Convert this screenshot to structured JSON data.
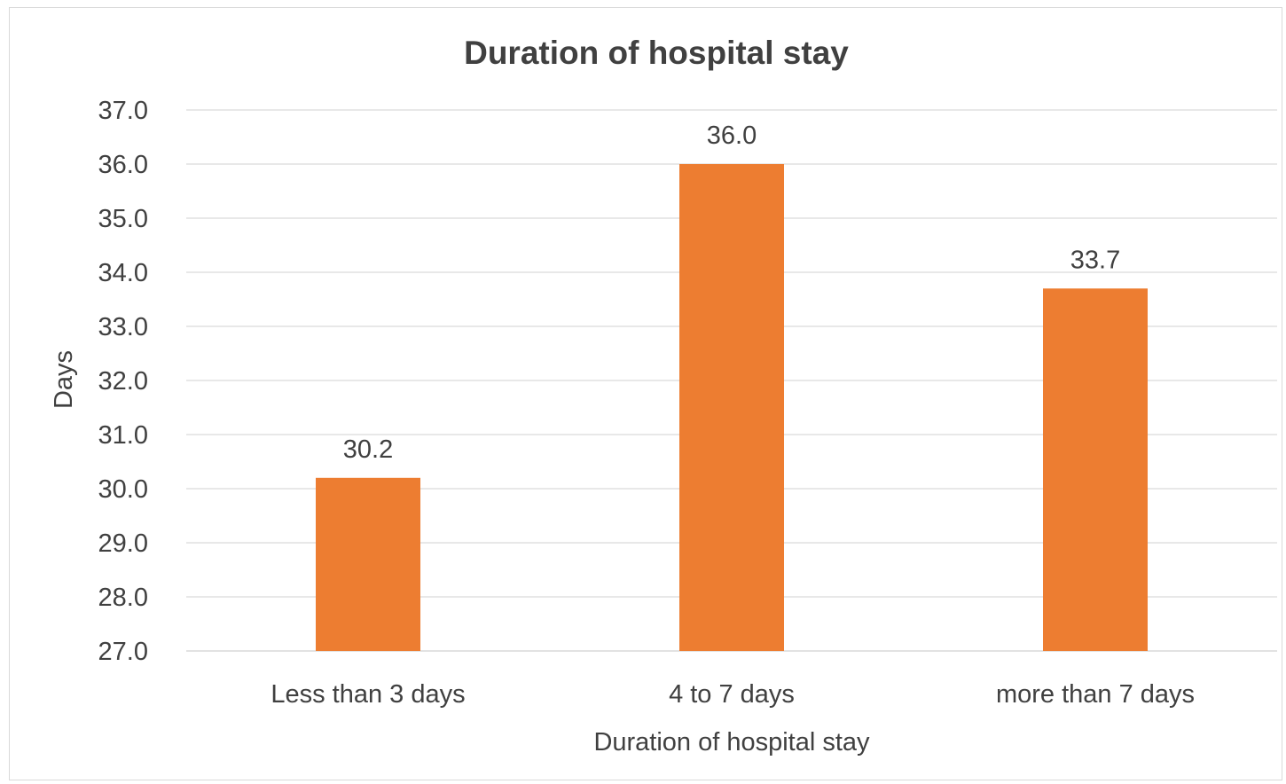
{
  "chart_data": {
    "type": "bar",
    "title": "Duration of hospital stay",
    "xlabel": "Duration of hospital stay",
    "ylabel": "Days",
    "categories": [
      "Less than 3 days",
      "4 to 7 days",
      "more than 7 days"
    ],
    "values": [
      30.2,
      36.0,
      33.7
    ],
    "data_labels": [
      "30.2",
      "36.0",
      "33.7"
    ],
    "ylim": [
      27.0,
      37.0
    ],
    "y_ticks": [
      "27.0",
      "28.0",
      "29.0",
      "30.0",
      "31.0",
      "32.0",
      "33.0",
      "34.0",
      "35.0",
      "36.0",
      "37.0"
    ],
    "grid": true,
    "legend": "none",
    "bar_color": "#ED7D31",
    "grid_color": "#D9D9D9"
  }
}
